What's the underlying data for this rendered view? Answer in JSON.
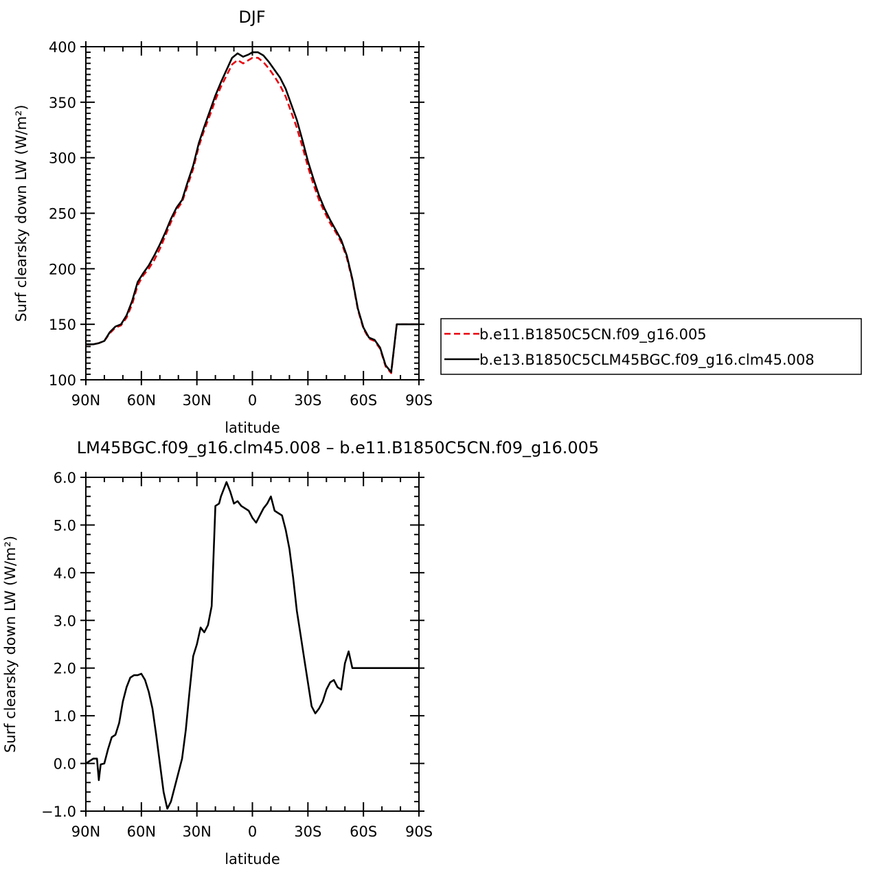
{
  "chart_data": [
    {
      "type": "line",
      "title": "DJF",
      "xlabel": "latitude",
      "ylabel": "Surf clearsky down LW (W/m²)",
      "xlim": [
        90,
        -90
      ],
      "ylim": [
        100,
        400
      ],
      "xticks": [
        {
          "value": 90,
          "label": "90N"
        },
        {
          "value": 60,
          "label": "60N"
        },
        {
          "value": 30,
          "label": "30N"
        },
        {
          "value": 0,
          "label": "0"
        },
        {
          "value": -30,
          "label": "30S"
        },
        {
          "value": -60,
          "label": "60S"
        },
        {
          "value": -90,
          "label": "90S"
        }
      ],
      "yticks": [
        {
          "value": 100,
          "label": "100"
        },
        {
          "value": 150,
          "label": "150"
        },
        {
          "value": 200,
          "label": "200"
        },
        {
          "value": 250,
          "label": "250"
        },
        {
          "value": 300,
          "label": "300"
        },
        {
          "value": 350,
          "label": "350"
        },
        {
          "value": 400,
          "label": "400"
        }
      ],
      "legend_position": "right",
      "series": [
        {
          "name": "b.e11.B1850C5CN.f09_g16.005",
          "color": "#e8000b",
          "dash": "dashed",
          "x": [
            90,
            86,
            83,
            80,
            77,
            74,
            71,
            68,
            65,
            62,
            59,
            56,
            53,
            50,
            47,
            44,
            41,
            38,
            35,
            32,
            29,
            26,
            23,
            20,
            17,
            14,
            11,
            8,
            5,
            2,
            0,
            -3,
            -6,
            -9,
            -12,
            -15,
            -18,
            -21,
            -24,
            -27,
            -30,
            -33,
            -36,
            -39,
            -42,
            -45,
            -48,
            -51,
            -54,
            -57,
            -60,
            -63,
            -66,
            -69,
            -72,
            -75,
            -78,
            -81,
            -84,
            -86,
            -88,
            -90
          ],
          "y": [
            132,
            132,
            133,
            135,
            142,
            147,
            149,
            156,
            168,
            185,
            194,
            200,
            208,
            218,
            230,
            242,
            253,
            260,
            275,
            290,
            310,
            325,
            338,
            352,
            364,
            374,
            384,
            388,
            385,
            388,
            390,
            390,
            386,
            380,
            373,
            365,
            355,
            341,
            327,
            310,
            292,
            276,
            262,
            251,
            241,
            233,
            224,
            210,
            190,
            163,
            146,
            137,
            135,
            128,
            112,
            106,
            150,
            150,
            150,
            150,
            150,
            150
          ]
        },
        {
          "name": "b.e13.B1850C5CLM45BGC.f09_g16.clm45.008",
          "color": "#000000",
          "dash": "solid",
          "x": [
            90,
            86,
            83,
            80,
            77,
            74,
            71,
            68,
            65,
            62,
            59,
            56,
            53,
            50,
            47,
            44,
            41,
            38,
            35,
            32,
            29,
            26,
            23,
            20,
            17,
            14,
            11,
            8,
            5,
            2,
            0,
            -3,
            -6,
            -9,
            -12,
            -15,
            -18,
            -21,
            -24,
            -27,
            -30,
            -33,
            -36,
            -39,
            -42,
            -45,
            -48,
            -51,
            -54,
            -57,
            -60,
            -63,
            -66,
            -69,
            -72,
            -75,
            -78,
            -81,
            -84,
            -86,
            -88,
            -90
          ],
          "y": [
            132,
            132,
            133,
            135,
            143,
            148,
            150,
            158,
            171,
            188,
            196,
            203,
            212,
            222,
            233,
            245,
            255,
            262,
            278,
            293,
            313,
            328,
            342,
            356,
            368,
            379,
            390,
            394,
            391,
            393,
            395,
            395,
            392,
            386,
            379,
            372,
            362,
            348,
            334,
            316,
            297,
            281,
            266,
            254,
            244,
            235,
            226,
            212,
            191,
            164,
            147,
            138,
            136,
            129,
            113,
            107,
            150,
            150,
            150,
            150,
            150,
            150
          ]
        }
      ]
    },
    {
      "type": "line",
      "title": "LM45BGC.f09_g16.clm45.008 – b.e11.B1850C5CN.f09_g16.005",
      "xlabel": "latitude",
      "ylabel": "Surf clearsky down LW (W/m²)",
      "xlim": [
        90,
        -90
      ],
      "ylim": [
        -1.0,
        6.0
      ],
      "xticks": [
        {
          "value": 90,
          "label": "90N"
        },
        {
          "value": 60,
          "label": "60N"
        },
        {
          "value": 30,
          "label": "30N"
        },
        {
          "value": 0,
          "label": "0"
        },
        {
          "value": -30,
          "label": "30S"
        },
        {
          "value": -60,
          "label": "60S"
        },
        {
          "value": -90,
          "label": "90S"
        }
      ],
      "yticks": [
        {
          "value": -1,
          "label": "−1.0"
        },
        {
          "value": 0,
          "label": "0.0"
        },
        {
          "value": 1,
          "label": "1.0"
        },
        {
          "value": 2,
          "label": "2.0"
        },
        {
          "value": 3,
          "label": "3.0"
        },
        {
          "value": 4,
          "label": "4.0"
        },
        {
          "value": 5,
          "label": "5.0"
        },
        {
          "value": 6,
          "label": "6.0"
        }
      ],
      "series": [
        {
          "name": "",
          "color": "#000000",
          "dash": "solid",
          "x": [
            90,
            86,
            84,
            83,
            82,
            80,
            78,
            76,
            74,
            72,
            70,
            68,
            66,
            64,
            62,
            60,
            58,
            56,
            54,
            52,
            50,
            48,
            46,
            44,
            42,
            40,
            38,
            36,
            34,
            32,
            30,
            28,
            26,
            24,
            22,
            20,
            18,
            17,
            16,
            14,
            12,
            10,
            8,
            6,
            4,
            2,
            0,
            -2,
            -4,
            -6,
            -8,
            -10,
            -12,
            -14,
            -16,
            -18,
            -20,
            -22,
            -24,
            -26,
            -28,
            -30,
            -32,
            -34,
            -36,
            -38,
            -40,
            -42,
            -44,
            -46,
            -48,
            -50,
            -52,
            -54,
            -56,
            -58,
            -60,
            -62,
            -64,
            -66,
            -68,
            -70,
            -72,
            -74,
            -76,
            -78,
            -80,
            -82,
            -84,
            -86,
            -88,
            -90
          ],
          "y": [
            0.0,
            0.1,
            0.1,
            -0.35,
            -0.02,
            0.0,
            0.3,
            0.55,
            0.6,
            0.85,
            1.3,
            1.6,
            1.8,
            1.85,
            1.85,
            1.88,
            1.75,
            1.5,
            1.15,
            0.6,
            0.0,
            -0.6,
            -0.95,
            -0.8,
            -0.5,
            -0.2,
            0.1,
            0.7,
            1.5,
            2.25,
            2.5,
            2.85,
            2.75,
            2.9,
            3.3,
            5.4,
            5.45,
            5.6,
            5.7,
            5.9,
            5.7,
            5.45,
            5.5,
            5.4,
            5.35,
            5.3,
            5.15,
            5.05,
            5.2,
            5.35,
            5.45,
            5.6,
            5.3,
            5.25,
            5.2,
            4.9,
            4.5,
            3.9,
            3.2,
            2.7,
            2.2,
            1.7,
            1.2,
            1.05,
            1.15,
            1.3,
            1.55,
            1.7,
            1.75,
            1.6,
            1.55,
            2.1,
            2.35,
            2.0,
            2.0,
            2.0,
            2.0,
            2.0,
            2.0,
            2.0,
            2.0,
            2.0,
            2.0,
            2.0,
            2.0,
            2.0,
            2.0,
            2.0,
            2.0,
            2.0,
            2.0,
            2.0
          ]
        }
      ]
    }
  ]
}
